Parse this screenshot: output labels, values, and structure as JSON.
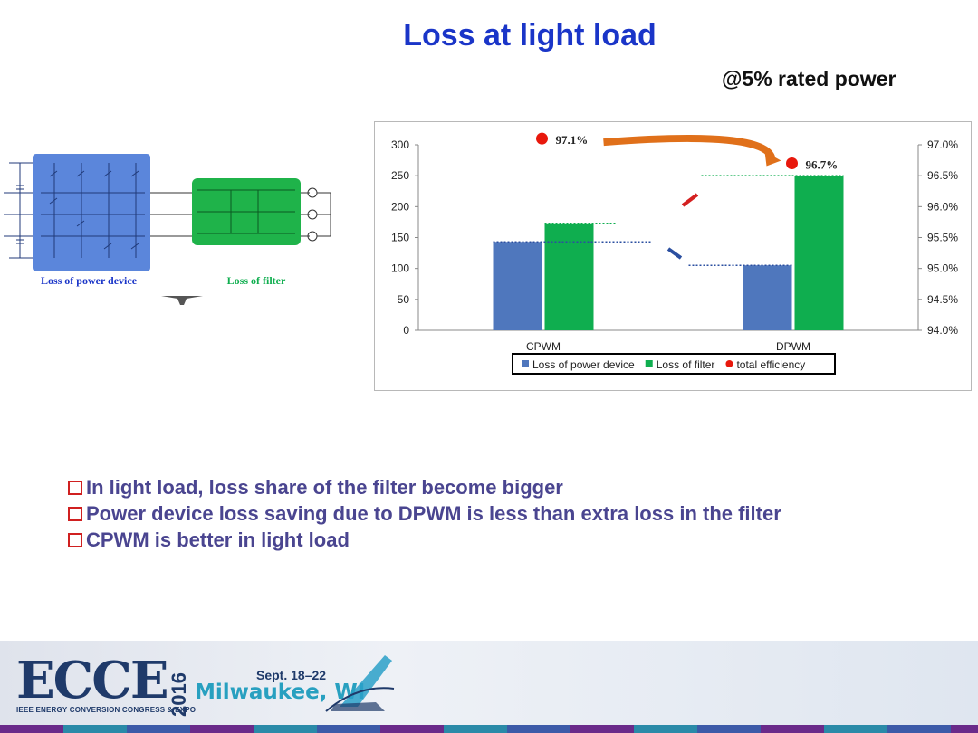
{
  "slide": {
    "title": "Loss at light load",
    "subtitle": "@5% rated power"
  },
  "circuit": {
    "label_power_device": "Loss of power device",
    "label_filter": "Loss of filter"
  },
  "chart_data": {
    "type": "bar",
    "categories": [
      "CPWM",
      "DPWM"
    ],
    "series": [
      {
        "name": "Loss of power device",
        "values": [
          143,
          105
        ],
        "color": "#4f77bd",
        "axis": "left"
      },
      {
        "name": "Loss of filter",
        "values": [
          173,
          250
        ],
        "color": "#0fae4f",
        "axis": "left"
      },
      {
        "name": "total efficiency",
        "values": [
          97.1,
          96.7
        ],
        "color": "#e8180c",
        "axis": "right",
        "kind": "point"
      }
    ],
    "data_labels": [
      "97.1%",
      "96.7%"
    ],
    "ylim": [
      0,
      300
    ],
    "y_ticks": [
      "0",
      "50",
      "100",
      "150",
      "200",
      "250",
      "300"
    ],
    "y2lim": [
      94.0,
      97.0
    ],
    "y2_ticks": [
      "94.0%",
      "94.5%",
      "95.0%",
      "95.5%",
      "96.0%",
      "96.5%",
      "97.0%"
    ],
    "legend_position": "bottom",
    "grid": false
  },
  "bullets": [
    "In light load, loss share of the filter become bigger",
    "Power device loss saving due to DPWM is less than extra loss in the filter",
    "CPWM is better in light load"
  ],
  "footer": {
    "logo": "ECCE",
    "year": "2016",
    "org": "IEEE ENERGY CONVERSION CONGRESS & EXPO",
    "dates": "Sept. 18–22",
    "city": "Milwaukee, WI"
  }
}
